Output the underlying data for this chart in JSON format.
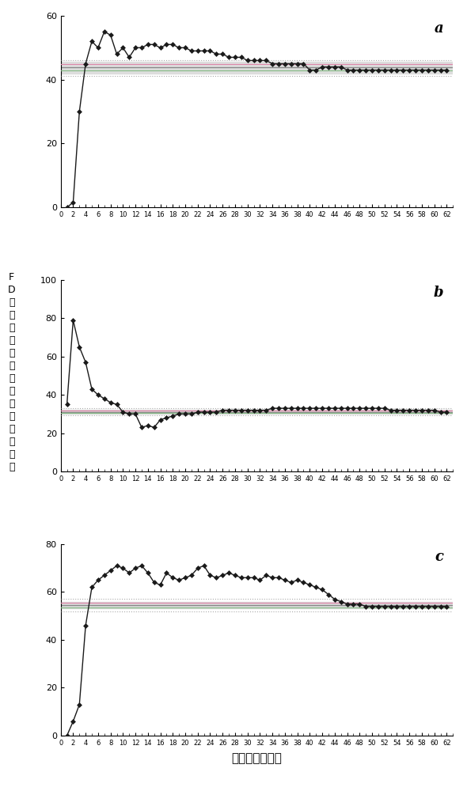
{
  "panel_a": {
    "label": "a",
    "ylim": [
      0,
      60
    ],
    "yticks": [
      0,
      20,
      40,
      60
    ],
    "mean": 43.8,
    "ci_band_low": 42.0,
    "ci_band_high": 45.5,
    "pink_line": 45.0,
    "green_line": 43.0,
    "dot_low": 41.2,
    "dot_high": 46.2,
    "data_x": [
      1,
      2,
      3,
      4,
      5,
      6,
      7,
      8,
      9,
      10,
      11,
      12,
      13,
      14,
      15,
      16,
      17,
      18,
      19,
      20,
      21,
      22,
      23,
      24,
      25,
      26,
      27,
      28,
      29,
      30,
      31,
      32,
      33,
      34,
      35,
      36,
      37,
      38,
      39,
      40,
      41,
      42,
      43,
      44,
      45,
      46,
      47,
      48,
      49,
      50,
      51,
      52,
      53,
      54,
      55,
      56,
      57,
      58,
      59,
      60,
      61,
      62
    ],
    "data_y": [
      0,
      1.5,
      30,
      45,
      52,
      50,
      55,
      54,
      48,
      50,
      47,
      50,
      50,
      51,
      51,
      50,
      51,
      51,
      50,
      50,
      49,
      49,
      49,
      49,
      48,
      48,
      47,
      47,
      47,
      46,
      46,
      46,
      46,
      45,
      45,
      45,
      45,
      45,
      45,
      43,
      43,
      44,
      44,
      44,
      44,
      43,
      43,
      43,
      43,
      43,
      43,
      43,
      43,
      43,
      43,
      43,
      43,
      43,
      43,
      43,
      43,
      43
    ]
  },
  "panel_b": {
    "label": "b",
    "ylim": [
      0,
      100
    ],
    "yticks": [
      0,
      20,
      40,
      60,
      80,
      100
    ],
    "mean": 31.2,
    "ci_band_low": 30.2,
    "ci_band_high": 32.2,
    "pink_line": 32.0,
    "green_line": 30.5,
    "dot_low": 29.2,
    "dot_high": 33.2,
    "data_x": [
      1,
      2,
      3,
      4,
      5,
      6,
      7,
      8,
      9,
      10,
      11,
      12,
      13,
      14,
      15,
      16,
      17,
      18,
      19,
      20,
      21,
      22,
      23,
      24,
      25,
      26,
      27,
      28,
      29,
      30,
      31,
      32,
      33,
      34,
      35,
      36,
      37,
      38,
      39,
      40,
      41,
      42,
      43,
      44,
      45,
      46,
      47,
      48,
      49,
      50,
      51,
      52,
      53,
      54,
      55,
      56,
      57,
      58,
      59,
      60,
      61,
      62
    ],
    "data_y": [
      35,
      79,
      65,
      57,
      43,
      40,
      38,
      36,
      35,
      31,
      30,
      30,
      23,
      24,
      23,
      27,
      28,
      29,
      30,
      30,
      30,
      31,
      31,
      31,
      31,
      32,
      32,
      32,
      32,
      32,
      32,
      32,
      32,
      33,
      33,
      33,
      33,
      33,
      33,
      33,
      33,
      33,
      33,
      33,
      33,
      33,
      33,
      33,
      33,
      33,
      33,
      33,
      32,
      32,
      32,
      32,
      32,
      32,
      32,
      32,
      31,
      31
    ]
  },
  "panel_c": {
    "label": "c",
    "ylim": [
      0,
      80
    ],
    "yticks": [
      0,
      20,
      40,
      60,
      80
    ],
    "mean": 54.5,
    "ci_band_low": 53.2,
    "ci_band_high": 55.8,
    "pink_line": 55.5,
    "green_line": 53.5,
    "dot_low": 52.0,
    "dot_high": 57.2,
    "data_x": [
      1,
      2,
      3,
      4,
      5,
      6,
      7,
      8,
      9,
      10,
      11,
      12,
      13,
      14,
      15,
      16,
      17,
      18,
      19,
      20,
      21,
      22,
      23,
      24,
      25,
      26,
      27,
      28,
      29,
      30,
      31,
      32,
      33,
      34,
      35,
      36,
      37,
      38,
      39,
      40,
      41,
      42,
      43,
      44,
      45,
      46,
      47,
      48,
      49,
      50,
      51,
      52,
      53,
      54,
      55,
      56,
      57,
      58,
      59,
      60,
      61,
      62
    ],
    "data_y": [
      0,
      6,
      13,
      46,
      62,
      65,
      67,
      69,
      71,
      70,
      68,
      70,
      71,
      68,
      64,
      63,
      68,
      66,
      65,
      66,
      67,
      70,
      71,
      67,
      66,
      67,
      68,
      67,
      66,
      66,
      66,
      65,
      67,
      66,
      66,
      65,
      64,
      65,
      64,
      63,
      62,
      61,
      59,
      57,
      56,
      55,
      55,
      55,
      54,
      54,
      54,
      54,
      54,
      54,
      54,
      54,
      54,
      54,
      54,
      54,
      54,
      54
    ]
  },
  "xticks": [
    0,
    2,
    4,
    6,
    8,
    10,
    12,
    14,
    16,
    18,
    20,
    22,
    24,
    26,
    28,
    30,
    32,
    34,
    36,
    38,
    40,
    42,
    44,
    46,
    48,
    50,
    52,
    54,
    56,
    58,
    60,
    62
  ],
  "xlabel": "胞饮突视野个数",
  "ylabel_chars": [
    "F",
    "D",
    "期",
    "胞",
    "饮",
    "突",
    "占",
    "总",
    "胞",
    "饮",
    "突",
    "数",
    "量",
    "百",
    "分",
    "比"
  ],
  "line_color": "#1a1a1a",
  "marker": "D",
  "marker_size": 3.0,
  "mean_line_color": "#888888",
  "band_color": "#d8d8d8",
  "band_alpha": 0.8,
  "pink_line_color": "#dd88aa",
  "green_line_color": "#88bb88",
  "dot_line_color": "#aaaaaa",
  "background_color": "#ffffff"
}
